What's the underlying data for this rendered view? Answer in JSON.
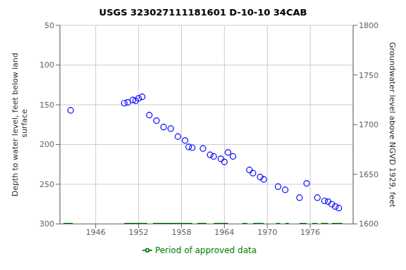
{
  "chart_data": {
    "type": "scatter",
    "title": "USGS 323027111181601 D-10-10 34CAB",
    "ylabel": "Depth to water level, feet below land\n surface",
    "y2label": "Groundwater level above NGVD 1929, feet",
    "xlim": [
      1941,
      1982
    ],
    "xticks": [
      1946,
      1952,
      1958,
      1964,
      1970,
      1976
    ],
    "ylim": [
      300,
      50
    ],
    "yticks": [
      50,
      100,
      150,
      200,
      250,
      300
    ],
    "y2lim": [
      1600,
      1800
    ],
    "y2ticks": [
      1800,
      1750,
      1700,
      1650,
      1600
    ],
    "grid": true,
    "legend": "bottom",
    "series": [
      {
        "type": "scatter",
        "color": "blue",
        "marker": "open circle",
        "x": [
          1942.5,
          1950.0,
          1950.5,
          1951.2,
          1951.6,
          1952.0,
          1952.5,
          1953.5,
          1954.5,
          1955.5,
          1956.5,
          1957.5,
          1958.5,
          1959.0,
          1959.5,
          1961.0,
          1962.0,
          1962.5,
          1963.5,
          1964.0,
          1964.5,
          1965.2,
          1967.5,
          1968.0,
          1969.0,
          1969.5,
          1971.5,
          1972.5,
          1974.5,
          1975.5,
          1977.0,
          1978.0,
          1978.5,
          1979.0,
          1979.5,
          1980.0
        ],
        "values": [
          157,
          148,
          147,
          144,
          145,
          142,
          140,
          163,
          170,
          178,
          180,
          190,
          195,
          203,
          204,
          205,
          213,
          215,
          218,
          222,
          210,
          215,
          232,
          236,
          241,
          244,
          253,
          257,
          267,
          249,
          267,
          271,
          272,
          275,
          278,
          280
        ]
      },
      {
        "name": "Period of approved data",
        "type": "line",
        "color": "#008000",
        "segments": [
          [
            1941.5,
            1942.8
          ],
          [
            1950.0,
            1953.2
          ],
          [
            1954.0,
            1959.5
          ],
          [
            1960.2,
            1961.5
          ],
          [
            1962.5,
            1964.5
          ],
          [
            1966.5,
            1967.2
          ],
          [
            1968.0,
            1969.5
          ],
          [
            1971.2,
            1971.8
          ],
          [
            1972.5,
            1973.0
          ],
          [
            1974.5,
            1975.5
          ],
          [
            1976.3,
            1977.0
          ],
          [
            1977.5,
            1978.5
          ],
          [
            1979.0,
            1980.5
          ]
        ],
        "value": 300
      }
    ]
  }
}
